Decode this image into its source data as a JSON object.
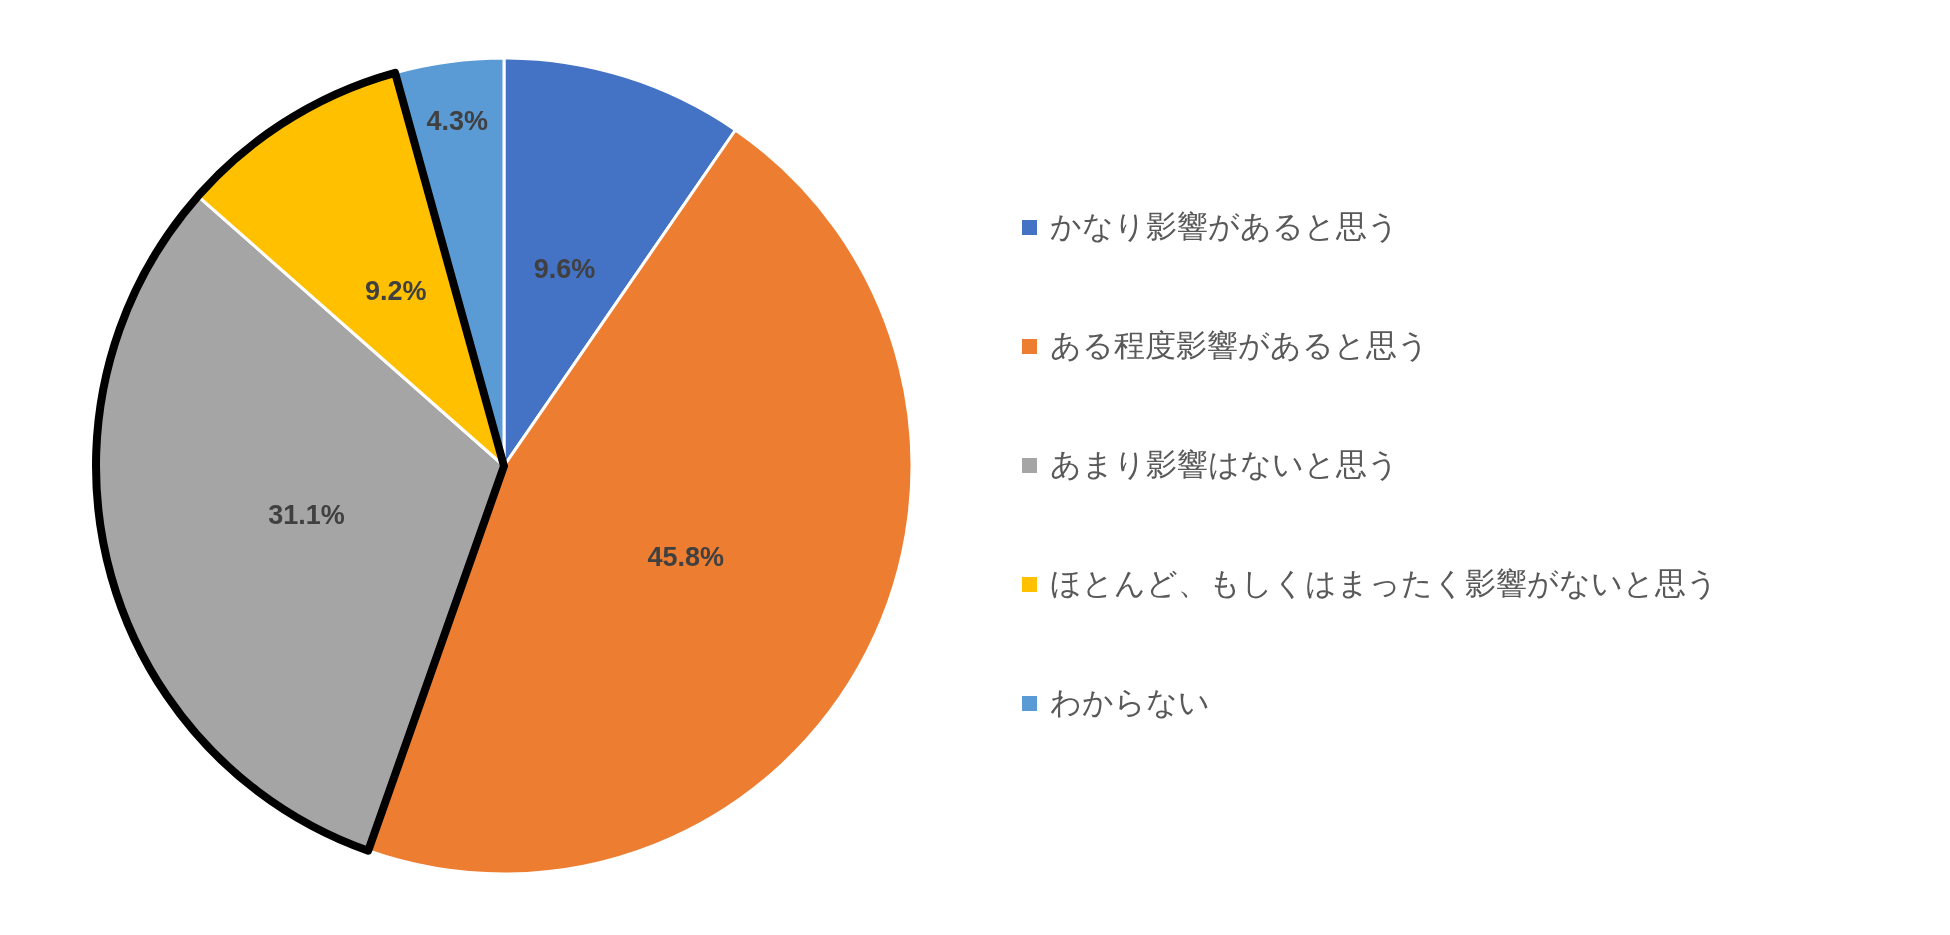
{
  "chart_data": {
    "type": "pie",
    "categories": [
      "かなり影響があると思う",
      "ある程度影響があると思う",
      "あまり影響はないと思う",
      "ほとんど、もしくはまったく影響がないと思う",
      "わからない"
    ],
    "values": [
      9.6,
      45.8,
      31.1,
      9.2,
      4.3
    ],
    "colors": [
      "#4472c4",
      "#ed7d31",
      "#a5a5a5",
      "#ffc000",
      "#5b9bd5"
    ],
    "value_labels": [
      "9.6%",
      "45.8%",
      "31.1%",
      "9.2%",
      "4.3%"
    ],
    "legend": "right"
  }
}
